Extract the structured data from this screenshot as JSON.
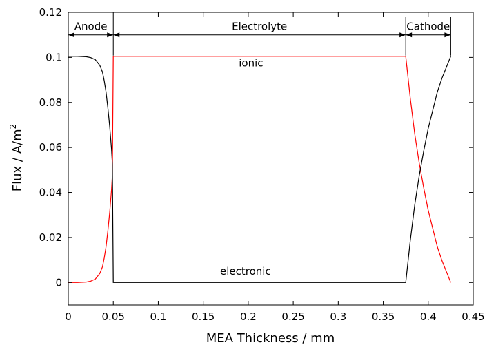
{
  "chart_data": {
    "type": "line",
    "xlabel": "MEA Thickness / mm",
    "ylabel_main": "Flux / A/m",
    "ylabel_sup": "2",
    "xlim": [
      0,
      0.45
    ],
    "ylim": [
      -0.01,
      0.12
    ],
    "x_ticks": [
      0,
      0.05,
      0.1,
      0.15,
      0.2,
      0.25,
      0.3,
      0.35,
      0.4,
      0.45
    ],
    "x_tick_labels": [
      "0",
      "0.05",
      "0.1",
      "0.15",
      "0.2",
      "0.25",
      "0.3",
      "0.35",
      "0.4",
      "0.45"
    ],
    "y_ticks": [
      0,
      0.02,
      0.04,
      0.06,
      0.08,
      0.1,
      0.12
    ],
    "y_tick_labels": [
      "0",
      "0.02",
      "0.04",
      "0.06",
      "0.08",
      "0.1",
      "0.12"
    ],
    "grid": false,
    "series": [
      {
        "name": "ionic",
        "color": "#ff0000",
        "x": [
          0,
          0.01,
          0.02,
          0.025,
          0.03,
          0.035,
          0.038,
          0.04,
          0.042,
          0.044,
          0.046,
          0.048,
          0.049,
          0.05,
          0.1,
          0.2,
          0.3,
          0.375,
          0.38,
          0.385,
          0.39,
          0.395,
          0.4,
          0.405,
          0.41,
          0.415,
          0.42,
          0.425
        ],
        "y": [
          0,
          0,
          0.0002,
          0.0006,
          0.0015,
          0.004,
          0.007,
          0.011,
          0.016,
          0.023,
          0.031,
          0.041,
          0.048,
          0.1005,
          0.1005,
          0.1005,
          0.1005,
          0.1005,
          0.082,
          0.066,
          0.053,
          0.042,
          0.032,
          0.024,
          0.016,
          0.01,
          0.005,
          0
        ]
      },
      {
        "name": "electronic",
        "color": "#000000",
        "x": [
          0,
          0.01,
          0.02,
          0.025,
          0.03,
          0.035,
          0.038,
          0.04,
          0.042,
          0.044,
          0.046,
          0.048,
          0.049,
          0.05,
          0.1,
          0.2,
          0.3,
          0.375,
          0.38,
          0.385,
          0.39,
          0.395,
          0.4,
          0.405,
          0.41,
          0.415,
          0.42,
          0.425
        ],
        "y": [
          0.1005,
          0.1005,
          0.1003,
          0.0999,
          0.099,
          0.0965,
          0.0935,
          0.0895,
          0.0845,
          0.0775,
          0.0695,
          0.0595,
          0.0525,
          0,
          0,
          0,
          0,
          0,
          0.0185,
          0.0345,
          0.0475,
          0.0585,
          0.0685,
          0.0765,
          0.0845,
          0.0905,
          0.0955,
          0.1005
        ]
      }
    ],
    "annotations": {
      "ionic_label": "ionic",
      "electronic_label": "electronic",
      "ionic_label_at": [
        0.2,
        0.0975
      ],
      "electronic_label_at": [
        0.2,
        0.0035
      ]
    },
    "regions": [
      {
        "label": "Anode",
        "from": 0,
        "to": 0.05
      },
      {
        "label": "Electrolyte",
        "from": 0.05,
        "to": 0.375
      },
      {
        "label": "Cathode",
        "from": 0.375,
        "to": 0.425
      }
    ],
    "region_arrow_y": 0.11,
    "region_bar_top_y": 0.118
  }
}
